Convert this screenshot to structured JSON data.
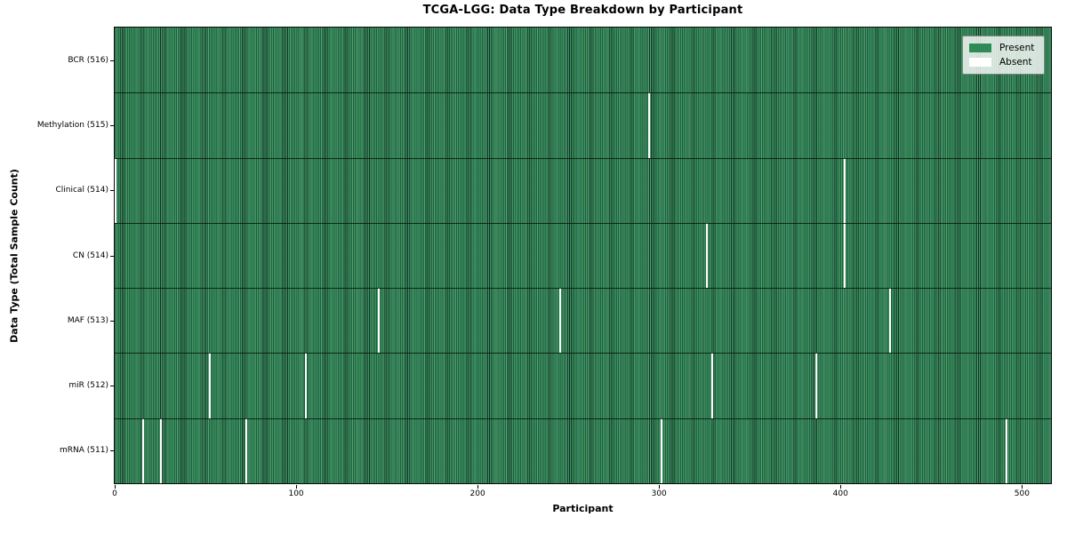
{
  "figure": {
    "title": "TCGA-LGG: Data Type Breakdown by Participant",
    "xlabel": "Participant",
    "ylabel": "Data Type (Total Sample Count)"
  },
  "colors": {
    "present": "#2e8b57",
    "absent": "#ffffff",
    "background": "#ffffff"
  },
  "chart_data": {
    "type": "heatmap",
    "title": "TCGA-LGG: Data Type Breakdown by Participant",
    "xlabel": "Participant",
    "ylabel": "Data Type (Total Sample Count)",
    "x_range": [
      0,
      516
    ],
    "x_ticks": [
      0,
      100,
      200,
      300,
      400,
      500
    ],
    "n_participants": 516,
    "grid": false,
    "legend_position": "upper right",
    "legend": [
      {
        "label": "Present",
        "color": "#2e8b57"
      },
      {
        "label": "Absent",
        "color": "#ffffff"
      }
    ],
    "rows": [
      {
        "label": "BCR (516)",
        "name": "BCR",
        "total": 516,
        "absent_participants": []
      },
      {
        "label": "Methylation (515)",
        "name": "Methylation",
        "total": 515,
        "absent_participants": [
          294
        ]
      },
      {
        "label": "Clinical (514)",
        "name": "Clinical",
        "total": 514,
        "absent_participants": [
          0,
          402
        ]
      },
      {
        "label": "CN (514)",
        "name": "CN",
        "total": 514,
        "absent_participants": [
          326,
          402
        ]
      },
      {
        "label": "MAF (513)",
        "name": "MAF",
        "total": 513,
        "absent_participants": [
          145,
          245,
          427
        ]
      },
      {
        "label": "miR (512)",
        "name": "miR",
        "total": 512,
        "absent_participants": [
          52,
          105,
          329,
          386
        ]
      },
      {
        "label": "mRNA (511)",
        "name": "mRNA",
        "total": 511,
        "absent_participants": [
          15,
          25,
          72,
          301,
          491
        ]
      }
    ]
  }
}
